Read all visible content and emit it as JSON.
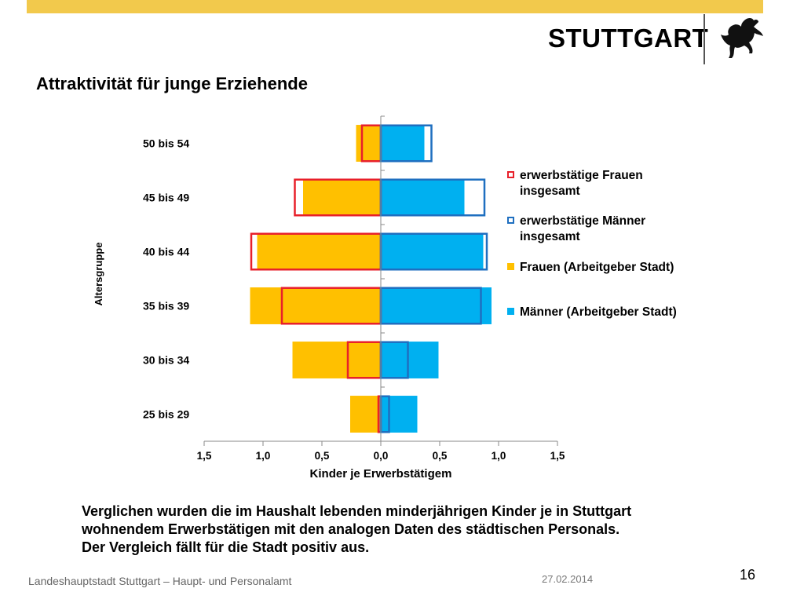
{
  "slide": {
    "logo_text": "STUTTGART",
    "title": "Attraktivität für junge Erziehende",
    "caption_lines": [
      "Verglichen wurden die im Haushalt lebenden minderjährigen Kinder je in Stuttgart",
      "wohnendem Erwerbstätigen mit den analogen Daten des städtischen Personals.",
      "Der Vergleich fällt für die Stadt positiv aus."
    ],
    "footer_left": "Landeshauptstadt Stuttgart – Haupt- und Personalamt",
    "footer_date": "27.02.2014",
    "page_number": "16",
    "colors": {
      "top_bar": "#f2c94c",
      "women_fill": "#ffc000",
      "men_fill": "#00b0f0",
      "women_outline": "#e8202a",
      "men_outline": "#1f6fc0"
    },
    "icons": [
      "stuttgart-horse-icon"
    ]
  },
  "chart_data": {
    "type": "bar",
    "orientation": "horizontal-population-pyramid",
    "categories": [
      "25 bis 29",
      "30 bis 34",
      "35 bis 39",
      "40 bis 44",
      "45 bis 49",
      "50 bis 54"
    ],
    "series": [
      {
        "name": "erwerbstätige Frauen insgesamt",
        "side": "left",
        "style": "outline",
        "values": [
          0.02,
          0.28,
          0.84,
          1.1,
          0.73,
          0.16
        ]
      },
      {
        "name": "erwerbstätige Männer insgesamt",
        "side": "right",
        "style": "outline",
        "values": [
          0.07,
          0.23,
          0.85,
          0.9,
          0.88,
          0.43
        ]
      },
      {
        "name": "Frauen (Arbeitgeber Stadt)",
        "side": "left",
        "style": "fill",
        "values": [
          0.26,
          0.75,
          1.11,
          1.05,
          0.66,
          0.21
        ]
      },
      {
        "name": "Männer (Arbeitgeber Stadt)",
        "side": "right",
        "style": "fill",
        "values": [
          0.31,
          0.49,
          0.94,
          0.87,
          0.71,
          0.37
        ]
      }
    ],
    "xlabel": "Kinder je Erwerbstätigem",
    "ylabel": "Altersgruppe",
    "x_ticks": [
      -1.5,
      -1.0,
      -0.5,
      0.0,
      0.5,
      1.0,
      1.5
    ],
    "x_tick_labels": [
      "1,5",
      "1,0",
      "0,5",
      "0,0",
      "0,5",
      "1,0",
      "1,5"
    ],
    "xlim": [
      -1.5,
      1.5
    ],
    "legend_position": "right"
  }
}
